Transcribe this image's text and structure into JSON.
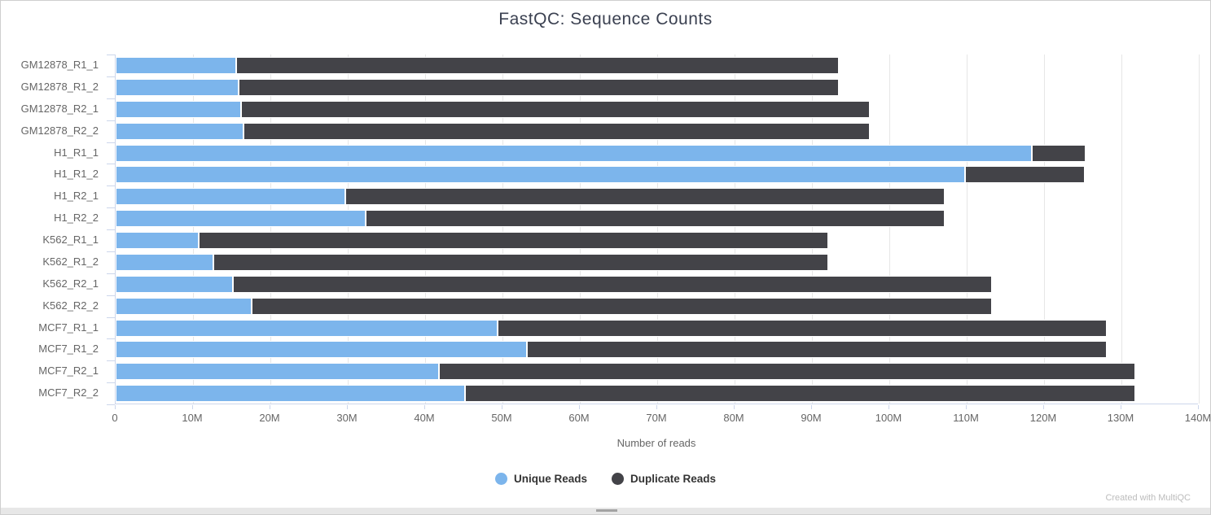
{
  "chart_data": {
    "type": "bar",
    "orientation": "horizontal",
    "stacked": true,
    "title": "FastQC: Sequence Counts",
    "xlabel": "Number of reads",
    "xlim_millions": [
      0,
      140
    ],
    "x_tick_step_millions": 10,
    "x_tick_labels": [
      "0",
      "10M",
      "20M",
      "30M",
      "40M",
      "50M",
      "60M",
      "70M",
      "80M",
      "90M",
      "100M",
      "110M",
      "120M",
      "130M",
      "140M"
    ],
    "grid": true,
    "legend_position": "bottom",
    "categories": [
      "GM12878_R1_1",
      "GM12878_R1_2",
      "GM12878_R2_1",
      "GM12878_R2_2",
      "H1_R1_1",
      "H1_R1_2",
      "H1_R2_1",
      "H1_R2_2",
      "K562_R1_1",
      "K562_R1_2",
      "K562_R2_1",
      "K562_R2_2",
      "MCF7_R1_1",
      "MCF7_R1_2",
      "MCF7_R2_1",
      "MCF7_R2_2"
    ],
    "series": [
      {
        "name": "Unique Reads",
        "color": "#7cb5ec",
        "values_millions": [
          15.6,
          15.9,
          16.2,
          16.5,
          118.5,
          109.9,
          29.7,
          32.3,
          10.7,
          12.6,
          15.2,
          17.6,
          49.4,
          53.2,
          41.8,
          45.2
        ]
      },
      {
        "name": "Duplicate Reads",
        "color": "#434348",
        "values_millions": [
          77.9,
          77.6,
          81.4,
          81.1,
          7.0,
          15.5,
          77.5,
          74.9,
          81.5,
          79.6,
          98.2,
          95.8,
          78.8,
          75.0,
          90.1,
          86.7
        ]
      }
    ],
    "totals_millions": [
      93.5,
      93.5,
      97.6,
      97.6,
      125.5,
      125.4,
      107.2,
      107.2,
      92.2,
      92.2,
      113.4,
      113.4,
      128.2,
      128.2,
      131.9,
      131.9
    ]
  },
  "footer": {
    "credit": "Created with MultiQC"
  }
}
